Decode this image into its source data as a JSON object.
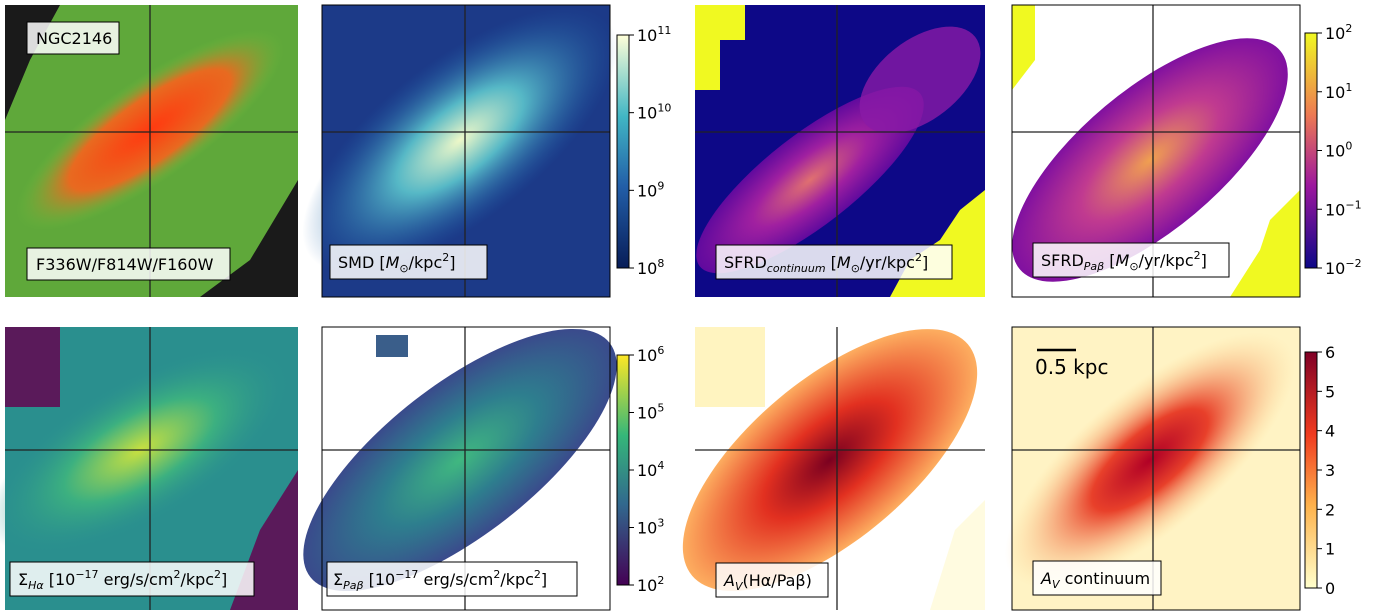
{
  "panels": [
    {
      "labels": [
        "NGC2146",
        "F336W/F814W/F160W"
      ]
    },
    {
      "label": [
        "SMD [",
        "M",
        "⊙",
        "/kpc",
        "2",
        "]"
      ]
    },
    {
      "label": [
        "SFRD",
        "continuum",
        " [",
        "M",
        "⊙",
        "/yr/kpc",
        "2",
        "]"
      ]
    },
    {
      "label": [
        "SFRD",
        "Paβ",
        " [",
        "M",
        "⊙",
        "/yr/kpc",
        "2",
        "]"
      ]
    },
    {
      "label": [
        "Σ",
        "Hα",
        " [10",
        "−17",
        " erg/s/cm",
        "2",
        "/kpc",
        "2",
        "]"
      ]
    },
    {
      "label": [
        "Σ",
        "Paβ",
        " [10",
        "−17",
        " erg/s/cm",
        "2",
        "/kpc",
        "2",
        "]"
      ]
    },
    {
      "label": [
        "A",
        "V",
        "(Hα/Paβ)"
      ]
    },
    {
      "label": [
        "A",
        "V",
        " continuum"
      ],
      "scale_bar": "0.5 kpc"
    }
  ],
  "colorbars": [
    {
      "base": "10",
      "exps": [
        "11",
        "10",
        "9",
        "8"
      ]
    },
    {
      "base": "10",
      "exps": [
        "2",
        "1",
        "0",
        "−1",
        "−2"
      ]
    },
    {
      "base": "10",
      "exps": [
        "6",
        "5",
        "4",
        "3",
        "2"
      ]
    },
    {
      "ticks": [
        6,
        5,
        4,
        3,
        2,
        1,
        0
      ]
    }
  ]
}
